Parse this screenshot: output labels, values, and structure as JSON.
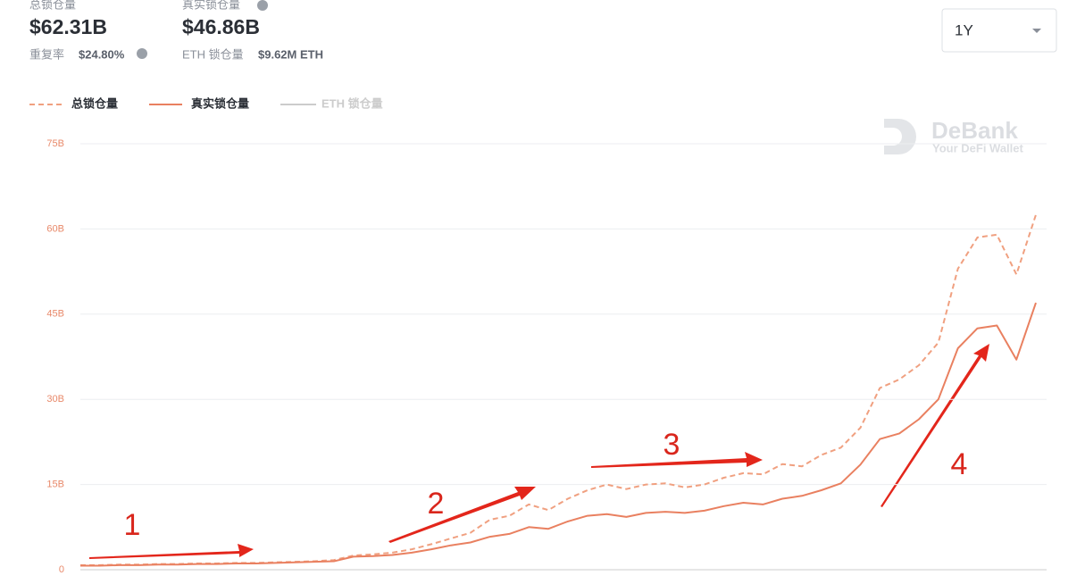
{
  "header": {
    "total_label": "总锁仓量",
    "total_value": "$62.31B",
    "dup_label": "重复率",
    "dup_value": "$24.80%",
    "real_label": "真实锁仓量",
    "real_value": "$46.86B",
    "eth_label": "ETH 锁仓量",
    "eth_value": "$9.62M ETH",
    "period": "1Y",
    "brand": "DeBank",
    "brand_sub": "Your DeFi Wallet"
  },
  "chart_data": {
    "type": "line",
    "categories": [
      null,
      null,
      null,
      null,
      null,
      null,
      null,
      null,
      null,
      null,
      null,
      null,
      null,
      null,
      null,
      null,
      null,
      null,
      null,
      null,
      null,
      null,
      null,
      null,
      null,
      null,
      null,
      null,
      null,
      null,
      null,
      null,
      null,
      null,
      null,
      null,
      null,
      null,
      null,
      null,
      null,
      null,
      null,
      null,
      null,
      null,
      null,
      null,
      null,
      null
    ],
    "series": [
      {
        "name": "总锁仓量",
        "color": "#f0a080",
        "dashed": true,
        "values": [
          0.8,
          0.8,
          0.9,
          0.9,
          1.0,
          1.0,
          1.1,
          1.1,
          1.2,
          1.2,
          1.3,
          1.4,
          1.5,
          1.7,
          2.5,
          2.7,
          3.0,
          3.6,
          4.5,
          5.5,
          6.5,
          8.8,
          9.5,
          11.5,
          10.5,
          12.5,
          14.0,
          15.0,
          14.2,
          15.0,
          15.2,
          14.5,
          15.0,
          16.2,
          17.0,
          16.8,
          18.6,
          18.2,
          20.2,
          21.5,
          25.0,
          32.0,
          33.5,
          36.0,
          40.0,
          53.0,
          58.5,
          59.0,
          52.0,
          62.5
        ]
      },
      {
        "name": "真实锁仓量",
        "color": "#e98060",
        "dashed": false,
        "values": [
          0.7,
          0.7,
          0.8,
          0.8,
          0.9,
          0.9,
          1.0,
          1.0,
          1.1,
          1.1,
          1.2,
          1.3,
          1.4,
          1.5,
          2.3,
          2.4,
          2.6,
          3.0,
          3.6,
          4.3,
          4.8,
          5.8,
          6.3,
          7.5,
          7.2,
          8.5,
          9.5,
          9.8,
          9.3,
          10.0,
          10.2,
          10.0,
          10.4,
          11.2,
          11.8,
          11.5,
          12.5,
          13.0,
          14.0,
          15.2,
          18.5,
          23.0,
          24.0,
          26.5,
          30.0,
          39.0,
          42.5,
          43.0,
          37.0,
          47.0
        ]
      }
    ],
    "hidden_series": {
      "name": "ETH 锁仓量",
      "color": "#cccccc"
    },
    "ylim": [
      0,
      75
    ],
    "yticks": [
      0,
      {
        "value": 15,
        "label": "15B"
      },
      {
        "value": 30,
        "label": "30B"
      },
      {
        "value": 45,
        "label": "45B"
      },
      {
        "value": 60,
        "label": "60B"
      },
      {
        "value": 75,
        "label": "75B"
      }
    ],
    "grid": true,
    "annotations": [
      "1",
      "2",
      "3",
      "4"
    ]
  }
}
